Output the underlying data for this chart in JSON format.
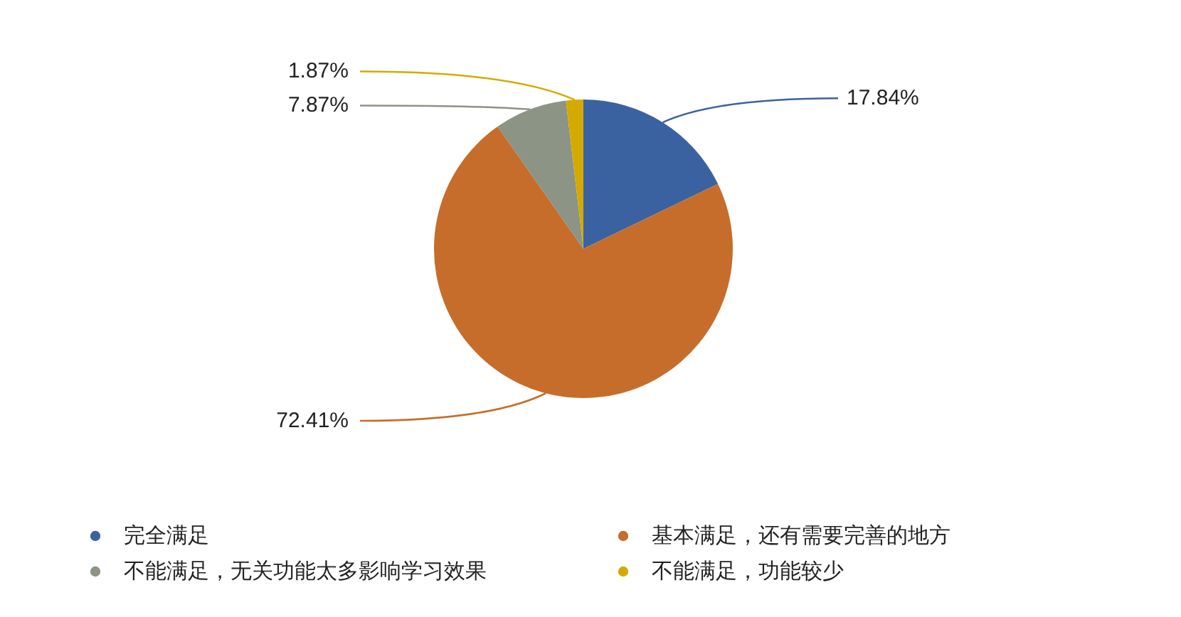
{
  "chart_data": {
    "type": "pie",
    "categories": [
      "完全满足",
      "基本满足，还有需要完善的地方",
      "不能满足，无关功能太多影响学习效果",
      "不能满足，功能较少"
    ],
    "values": [
      17.84,
      72.41,
      7.87,
      1.87
    ],
    "colors": [
      "#3b62a0",
      "#c66d2b",
      "#8b9485",
      "#d4aa00"
    ],
    "value_labels": [
      "17.84%",
      "72.41%",
      "7.87%",
      "1.87%"
    ],
    "legend": "bottom"
  }
}
